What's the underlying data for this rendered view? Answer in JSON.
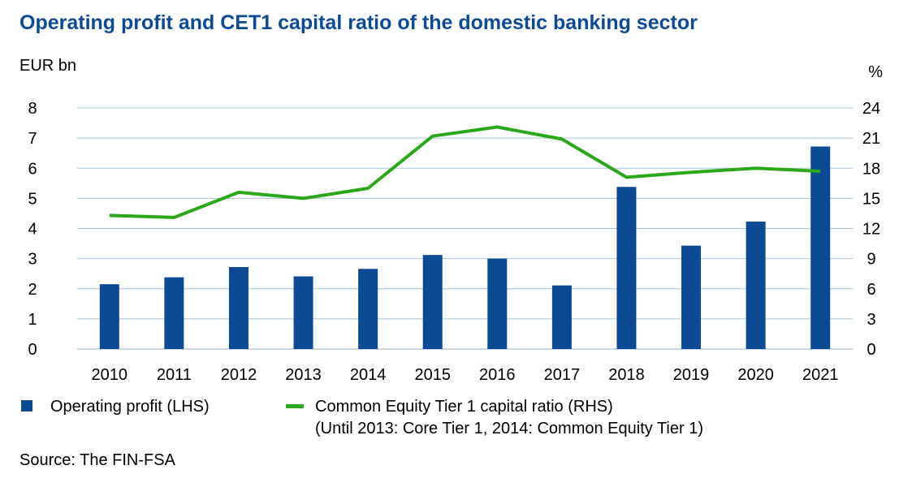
{
  "chart_data": {
    "type": "bar",
    "title": "Operating profit and CET1 capital ratio of the domestic banking sector",
    "ylabel_left": "EUR bn",
    "ylabel_right": "%",
    "categories": [
      "2010",
      "2011",
      "2012",
      "2013",
      "2014",
      "2015",
      "2016",
      "2017",
      "2018",
      "2019",
      "2020",
      "2021"
    ],
    "ylim_left": [
      0,
      8
    ],
    "yticks_left": [
      "0",
      "1",
      "2",
      "3",
      "4",
      "5",
      "6",
      "7",
      "8"
    ],
    "ylim_right": [
      0,
      24
    ],
    "yticks_right": [
      "0",
      "3",
      "6",
      "9",
      "12",
      "15",
      "18",
      "21",
      "24"
    ],
    "grid": true,
    "series": [
      {
        "name": "Operating profit (LHS)",
        "type": "bar",
        "axis": "left",
        "color": "#0d4a94",
        "values": [
          2.15,
          2.38,
          2.72,
          2.41,
          2.66,
          3.12,
          3.0,
          2.11,
          5.38,
          3.43,
          4.23,
          6.72
        ]
      },
      {
        "name": "Common Equity Tier 1 capital ratio (RHS)",
        "name_note": "(Until 2013: Core Tier 1, 2014: Common Equity Tier 1)",
        "type": "line",
        "axis": "right",
        "color": "#2aa81a",
        "values": [
          13.3,
          13.1,
          15.6,
          15.0,
          16.0,
          21.2,
          22.1,
          20.9,
          17.1,
          17.6,
          18.0,
          17.7
        ]
      }
    ],
    "legend_position": "bottom"
  },
  "source": "Source: The FIN-FSA"
}
